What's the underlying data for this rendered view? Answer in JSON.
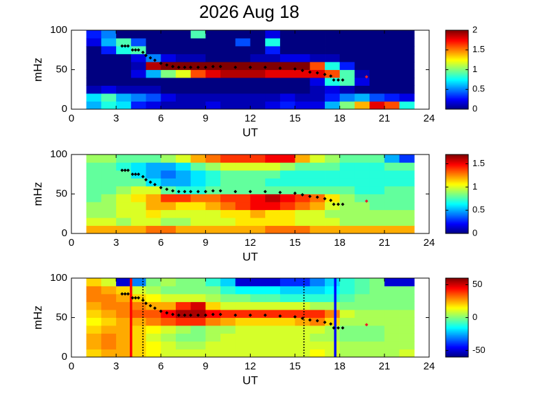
{
  "title": "2026 Aug 18",
  "track": {
    "color": "#000000",
    "x": [
      3.4,
      3.6,
      3.8,
      4.1,
      4.3,
      4.5,
      4.8,
      5.0,
      5.3,
      5.6,
      6.0,
      6.4,
      6.8,
      7.2,
      7.6,
      8.0,
      8.5,
      9.0,
      9.5,
      10,
      11,
      12,
      13,
      14,
      15,
      15.5,
      16,
      16.5,
      17,
      17.4,
      17.6,
      17.9,
      18.2
    ],
    "y": [
      80,
      80,
      80,
      75,
      75,
      75,
      72,
      68,
      65,
      62,
      58,
      56,
      54,
      53,
      53,
      53,
      53,
      53,
      54,
      54,
      53,
      53,
      53,
      52,
      51,
      49,
      47,
      46,
      44,
      42,
      37,
      37,
      37
    ]
  },
  "marker": {
    "color": "#e8202a",
    "x": [
      19.8
    ],
    "y": [
      41
    ]
  },
  "chart_data": [
    {
      "type": "heatmap",
      "colormap": "jet",
      "ylabel": "mHz",
      "xlabel": "UT",
      "xlim": [
        0,
        24
      ],
      "xticks": [
        0,
        3,
        6,
        9,
        12,
        15,
        18,
        21,
        24
      ],
      "ylim": [
        0,
        100
      ],
      "yticks": [
        0,
        50,
        100
      ],
      "clim": [
        0,
        2
      ],
      "cticks": [
        0,
        0.5,
        1,
        1.5,
        2
      ],
      "x_edges": [
        1,
        2,
        3,
        4,
        5,
        6,
        7,
        8,
        9,
        10,
        11,
        12,
        13,
        14,
        15,
        16,
        17,
        18,
        19,
        20,
        21,
        22,
        23
      ],
      "y_edges": [
        0,
        10,
        20,
        30,
        40,
        50,
        60,
        70,
        80,
        90,
        100
      ],
      "z": [
        [
          0.6,
          0.8,
          0.7,
          0.3,
          0.2,
          0.1,
          0.1,
          0.1,
          0.2,
          0.1,
          0.1,
          0.1,
          0.2,
          0.3,
          0.2,
          0.2,
          0.6,
          1.0,
          1.4,
          1.8,
          1.6,
          0.8
        ],
        [
          0.7,
          0.9,
          0.6,
          0.5,
          0.4,
          0.2,
          0.1,
          0.1,
          0.1,
          0.1,
          0.1,
          0.1,
          0.1,
          0.2,
          0.1,
          0.1,
          0.3,
          0.5,
          0.6,
          0.4,
          0.3,
          0.2
        ],
        [
          0.1,
          0.2,
          0.1,
          0.1,
          0.1,
          0,
          0,
          0,
          0,
          0,
          0,
          0,
          0,
          0,
          0,
          0.1,
          0.2,
          0.1,
          0,
          0,
          0,
          0
        ],
        [
          0,
          0,
          0,
          0,
          0,
          0,
          0,
          0,
          0,
          0,
          0,
          0,
          0,
          0,
          0,
          0.2,
          0.8,
          0.9,
          0.2,
          0,
          0,
          0
        ],
        [
          0,
          0,
          0,
          0.2,
          0.6,
          1.0,
          1.2,
          1.6,
          1.8,
          1.9,
          1.9,
          1.9,
          1.8,
          1.8,
          1.8,
          1.8,
          1.6,
          0.9,
          0.1,
          0,
          0,
          0
        ],
        [
          0,
          0,
          0,
          0.1,
          1.9,
          2,
          2,
          2,
          2,
          2,
          2,
          2,
          2,
          2,
          2,
          1.6,
          0.8,
          0.3,
          0,
          0,
          0,
          0
        ],
        [
          0,
          0,
          0,
          0.2,
          0.5,
          0.2,
          0.1,
          0.1,
          0,
          0,
          0,
          0.1,
          0.1,
          0.2,
          0.2,
          0.1,
          0.1,
          0,
          0,
          0,
          0,
          0
        ],
        [
          0,
          0.3,
          0.8,
          0.9,
          0,
          0,
          0,
          0,
          0,
          0,
          0,
          0,
          0.3,
          0,
          0,
          0,
          0,
          0,
          0,
          0,
          0,
          0
        ],
        [
          0.2,
          0.6,
          0.9,
          0.4,
          0,
          0,
          0,
          0,
          0,
          0,
          0.4,
          0,
          0.8,
          0,
          0,
          0,
          0,
          0,
          0,
          0,
          0,
          0
        ],
        [
          0.3,
          0.5,
          0,
          0,
          0,
          0,
          0,
          0.9,
          0,
          0,
          0,
          0,
          0.2,
          0,
          0,
          0,
          0,
          0,
          0,
          0,
          0,
          0
        ]
      ]
    },
    {
      "type": "heatmap",
      "colormap": "jet",
      "ylabel": "mHz",
      "xlabel": "UT",
      "xlim": [
        0,
        24
      ],
      "xticks": [
        0,
        3,
        6,
        9,
        12,
        15,
        18,
        21,
        24
      ],
      "ylim": [
        0,
        100
      ],
      "yticks": [
        0,
        50,
        100
      ],
      "clim": [
        0,
        1.7
      ],
      "cticks": [
        0,
        0.5,
        1,
        1.5
      ],
      "x_edges": [
        1,
        2,
        3,
        4,
        5,
        6,
        7,
        8,
        9,
        10,
        11,
        12,
        13,
        14,
        15,
        16,
        17,
        18,
        19,
        20,
        21,
        22,
        23
      ],
      "y_edges": [
        0,
        10,
        20,
        30,
        40,
        50,
        60,
        70,
        80,
        90,
        100
      ],
      "z": [
        [
          1.2,
          1.2,
          1.2,
          1.2,
          1.3,
          1.3,
          1.2,
          1.2,
          1.2,
          1.2,
          1.2,
          1.2,
          1.3,
          1.3,
          1.3,
          1.2,
          1.2,
          1.2,
          1.2,
          1.2,
          1.2,
          1.2
        ],
        [
          1.0,
          1.0,
          0.9,
          1.0,
          1.0,
          0.9,
          0.9,
          1.0,
          1.0,
          1.0,
          1.1,
          1.1,
          1.1,
          1.1,
          1.0,
          1.0,
          1.0,
          0.9,
          0.9,
          0.9,
          0.9,
          0.9
        ],
        [
          0.9,
          0.9,
          1.0,
          1.0,
          1.1,
          1.0,
          1.0,
          1.0,
          1.0,
          1.1,
          1.1,
          1.2,
          1.1,
          1.1,
          1.0,
          1.0,
          0.9,
          0.9,
          0.9,
          0.9,
          0.9,
          0.9
        ],
        [
          0.9,
          0.9,
          1.0,
          1.0,
          1.2,
          1.2,
          1.1,
          1.1,
          1.2,
          1.3,
          1.4,
          1.5,
          1.5,
          1.4,
          1.3,
          1.2,
          1.0,
          0.9,
          0.9,
          0.8,
          0.8,
          0.8
        ],
        [
          0.8,
          0.9,
          1.0,
          1.1,
          1.2,
          1.4,
          1.4,
          1.3,
          1.3,
          1.4,
          1.4,
          1.5,
          1.6,
          1.5,
          1.4,
          1.3,
          1.1,
          0.9,
          0.8,
          0.8,
          0.8,
          0.8
        ],
        [
          0.8,
          0.8,
          0.9,
          1.0,
          1.0,
          0.8,
          0.7,
          0.7,
          0.8,
          0.8,
          0.8,
          0.8,
          0.8,
          0.8,
          0.8,
          0.8,
          0.8,
          0.8,
          0.7,
          0.7,
          0.8,
          0.8
        ],
        [
          0.8,
          0.8,
          0.8,
          0.8,
          0.6,
          0.5,
          0.5,
          0.6,
          0.7,
          0.8,
          0.8,
          0.8,
          0.7,
          0.7,
          0.7,
          0.7,
          0.7,
          0.7,
          0.7,
          0.7,
          0.7,
          0.7
        ],
        [
          0.8,
          0.8,
          0.8,
          0.6,
          0.5,
          0.4,
          0.5,
          0.6,
          0.7,
          0.8,
          0.8,
          0.8,
          0.8,
          0.7,
          0.7,
          0.7,
          0.7,
          0.7,
          0.7,
          0.7,
          0.7,
          0.7
        ],
        [
          0.8,
          0.8,
          0.7,
          0.6,
          0.5,
          0.5,
          0.6,
          0.8,
          0.9,
          1.0,
          1.0,
          1.0,
          1.0,
          0.9,
          0.8,
          0.8,
          0.8,
          0.7,
          0.7,
          0.7,
          0.8,
          0.8
        ],
        [
          0.9,
          0.9,
          0.8,
          0.8,
          0.8,
          0.9,
          1.0,
          1.2,
          1.3,
          1.4,
          1.4,
          1.4,
          1.5,
          1.5,
          1.2,
          1.0,
          0.9,
          0.8,
          0.8,
          0.8,
          0.5,
          0.3
        ]
      ]
    },
    {
      "type": "heatmap",
      "colormap": "jet",
      "ylabel": "mHz",
      "xlabel": "UT",
      "xlim": [
        0,
        24
      ],
      "xticks": [
        0,
        3,
        6,
        9,
        12,
        15,
        18,
        21,
        24
      ],
      "ylim": [
        0,
        100
      ],
      "yticks": [
        0,
        50,
        100
      ],
      "clim": [
        -60,
        60
      ],
      "cticks": [
        -50,
        0,
        50
      ],
      "x_edges": [
        1,
        2,
        3,
        4,
        5,
        6,
        7,
        8,
        9,
        10,
        11,
        12,
        13,
        14,
        15,
        16,
        17,
        18,
        19,
        20,
        21,
        22,
        23
      ],
      "y_edges": [
        0,
        10,
        20,
        30,
        40,
        50,
        60,
        70,
        80,
        90,
        100
      ],
      "z": [
        [
          20,
          25,
          25,
          20,
          15,
          10,
          10,
          10,
          10,
          10,
          10,
          10,
          10,
          10,
          10,
          15,
          10,
          5,
          5,
          5,
          5,
          10
        ],
        [
          25,
          30,
          25,
          20,
          15,
          10,
          5,
          5,
          10,
          10,
          10,
          10,
          10,
          10,
          10,
          10,
          10,
          5,
          5,
          5,
          5,
          5
        ],
        [
          25,
          30,
          25,
          20,
          10,
          5,
          0,
          0,
          5,
          10,
          10,
          10,
          10,
          10,
          10,
          5,
          5,
          0,
          0,
          0,
          5,
          5
        ],
        [
          20,
          25,
          25,
          20,
          15,
          10,
          5,
          0,
          5,
          5,
          10,
          10,
          10,
          10,
          10,
          10,
          5,
          0,
          0,
          0,
          5,
          5
        ],
        [
          15,
          20,
          25,
          25,
          30,
          35,
          40,
          40,
          30,
          25,
          20,
          20,
          20,
          20,
          25,
          30,
          20,
          5,
          5,
          5,
          5,
          5
        ],
        [
          20,
          25,
          30,
          35,
          35,
          45,
          55,
          55,
          45,
          40,
          40,
          40,
          40,
          40,
          40,
          40,
          30,
          10,
          5,
          5,
          5,
          5
        ],
        [
          25,
          30,
          30,
          30,
          25,
          25,
          40,
          50,
          20,
          10,
          10,
          10,
          10,
          10,
          10,
          5,
          5,
          0,
          0,
          0,
          0,
          0
        ],
        [
          30,
          30,
          25,
          20,
          15,
          10,
          10,
          10,
          5,
          0,
          0,
          -5,
          -5,
          -10,
          -10,
          -10,
          -10,
          -5,
          0,
          0,
          0,
          0
        ],
        [
          30,
          25,
          20,
          10,
          5,
          0,
          0,
          0,
          0,
          -10,
          -15,
          -15,
          -15,
          -20,
          -20,
          -20,
          -15,
          -10,
          -5,
          0,
          0,
          0
        ],
        [
          20,
          10,
          -50,
          -30,
          0,
          5,
          0,
          0,
          -10,
          -20,
          -50,
          -50,
          -50,
          -40,
          -40,
          -30,
          -20,
          -10,
          -5,
          0,
          -50,
          -50
        ]
      ],
      "vlines": [
        {
          "x": 4,
          "color": "#ff0000",
          "style": "solid"
        },
        {
          "x": 4.8,
          "color": "#000000",
          "style": "dotted"
        },
        {
          "x": 15.6,
          "color": "#000000",
          "style": "dotted"
        },
        {
          "x": 17.7,
          "color": "#0000ff",
          "style": "solid"
        }
      ]
    }
  ]
}
